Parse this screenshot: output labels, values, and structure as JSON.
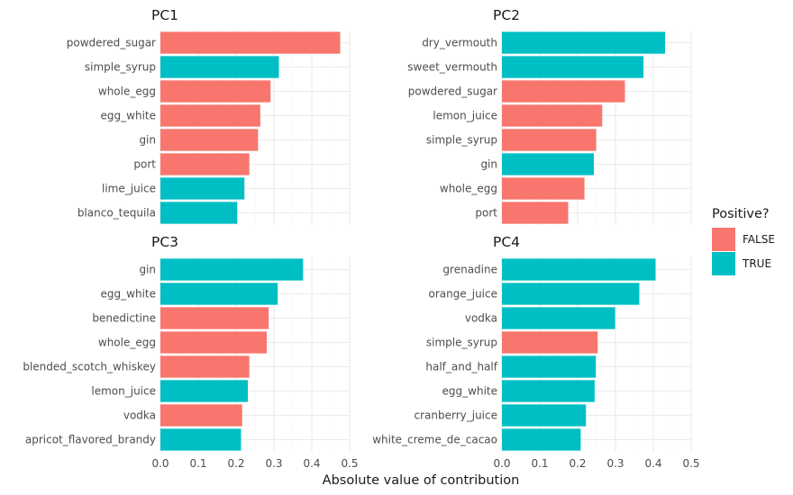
{
  "chart_data": {
    "type": "bar",
    "orientation": "horizontal",
    "xlabel": "Absolute value of contribution",
    "xlim": [
      0,
      0.5
    ],
    "x_ticks": [
      "0.0",
      "0.1",
      "0.2",
      "0.3",
      "0.4",
      "0.5"
    ],
    "grid": true,
    "legend": {
      "title": "Positive?",
      "placement": "right",
      "entries": [
        {
          "label": "FALSE",
          "color": "#F8766D"
        },
        {
          "label": "TRUE",
          "color": "#00BFC4"
        }
      ]
    },
    "panels": [
      {
        "title": "PC1",
        "bars": [
          {
            "label": "powdered_sugar",
            "value": 0.475,
            "positive": "FALSE"
          },
          {
            "label": "simple_syrup",
            "value": 0.313,
            "positive": "TRUE"
          },
          {
            "label": "whole_egg",
            "value": 0.291,
            "positive": "FALSE"
          },
          {
            "label": "egg_white",
            "value": 0.264,
            "positive": "FALSE"
          },
          {
            "label": "gin",
            "value": 0.258,
            "positive": "FALSE"
          },
          {
            "label": "port",
            "value": 0.235,
            "positive": "FALSE"
          },
          {
            "label": "lime_juice",
            "value": 0.222,
            "positive": "TRUE"
          },
          {
            "label": "blanco_tequila",
            "value": 0.203,
            "positive": "TRUE"
          }
        ]
      },
      {
        "title": "PC2",
        "bars": [
          {
            "label": "dry_vermouth",
            "value": 0.431,
            "positive": "TRUE"
          },
          {
            "label": "sweet_vermouth",
            "value": 0.374,
            "positive": "TRUE"
          },
          {
            "label": "powdered_sugar",
            "value": 0.325,
            "positive": "FALSE"
          },
          {
            "label": "lemon_juice",
            "value": 0.265,
            "positive": "FALSE"
          },
          {
            "label": "simple_syrup",
            "value": 0.249,
            "positive": "FALSE"
          },
          {
            "label": "gin",
            "value": 0.243,
            "positive": "TRUE"
          },
          {
            "label": "whole_egg",
            "value": 0.218,
            "positive": "FALSE"
          },
          {
            "label": "port",
            "value": 0.175,
            "positive": "FALSE"
          }
        ]
      },
      {
        "title": "PC3",
        "bars": [
          {
            "label": "gin",
            "value": 0.377,
            "positive": "TRUE"
          },
          {
            "label": "egg_white",
            "value": 0.31,
            "positive": "TRUE"
          },
          {
            "label": "benedictine",
            "value": 0.286,
            "positive": "FALSE"
          },
          {
            "label": "whole_egg",
            "value": 0.281,
            "positive": "FALSE"
          },
          {
            "label": "blended_scotch_whiskey",
            "value": 0.235,
            "positive": "FALSE"
          },
          {
            "label": "lemon_juice",
            "value": 0.231,
            "positive": "TRUE"
          },
          {
            "label": "vodka",
            "value": 0.216,
            "positive": "FALSE"
          },
          {
            "label": "apricot_flavored_brandy",
            "value": 0.213,
            "positive": "TRUE"
          }
        ]
      },
      {
        "title": "PC4",
        "bars": [
          {
            "label": "grenadine",
            "value": 0.406,
            "positive": "TRUE"
          },
          {
            "label": "orange_juice",
            "value": 0.363,
            "positive": "TRUE"
          },
          {
            "label": "vodka",
            "value": 0.299,
            "positive": "TRUE"
          },
          {
            "label": "simple_syrup",
            "value": 0.253,
            "positive": "FALSE"
          },
          {
            "label": "half_and_half",
            "value": 0.248,
            "positive": "TRUE"
          },
          {
            "label": "egg_white",
            "value": 0.245,
            "positive": "TRUE"
          },
          {
            "label": "cranberry_juice",
            "value": 0.222,
            "positive": "TRUE"
          },
          {
            "label": "white_creme_de_cacao",
            "value": 0.208,
            "positive": "TRUE"
          }
        ]
      }
    ]
  }
}
